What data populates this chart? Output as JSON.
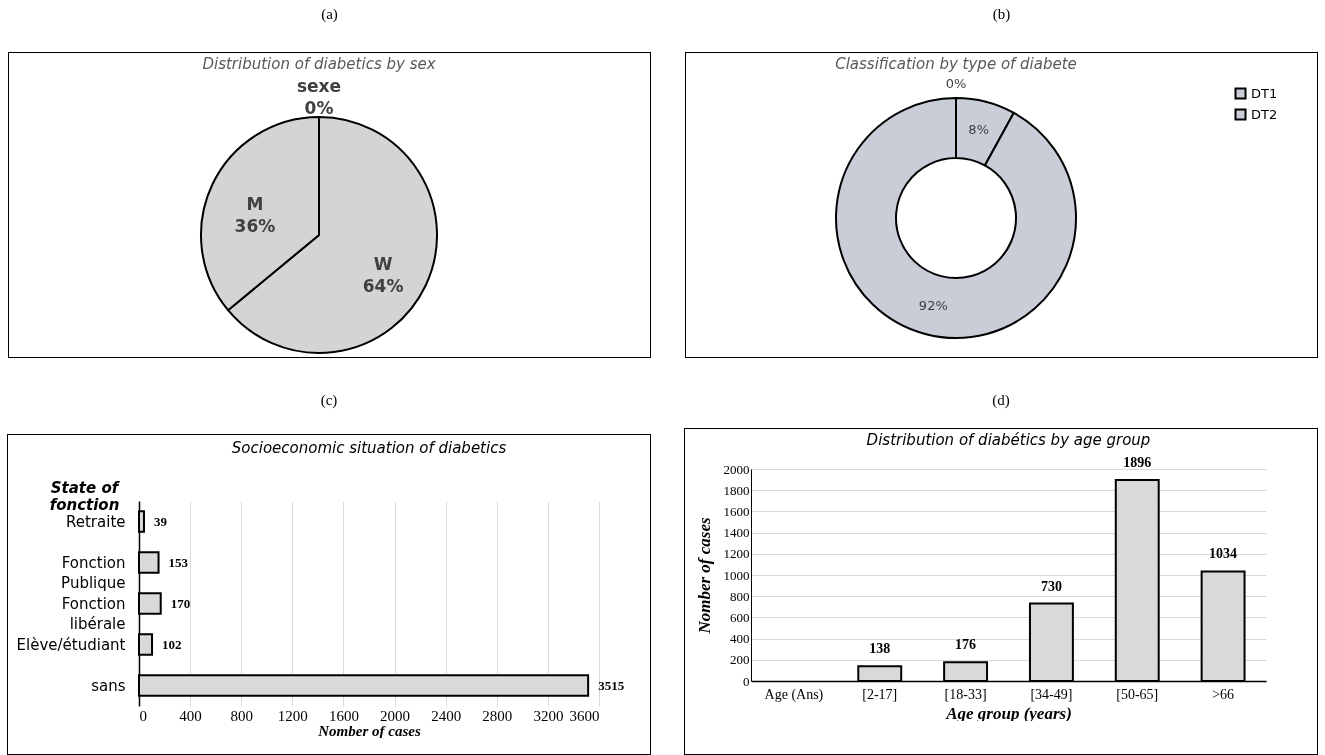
{
  "chart_data": [
    {
      "type": "pie",
      "title": "Distribution of diabetics by sex",
      "annotations": [
        "(a)"
      ],
      "categories": [
        "sexe",
        "W",
        "M"
      ],
      "values": [
        0,
        64,
        36
      ],
      "value_labels": [
        "0%",
        "64%",
        "36%"
      ],
      "colors": [
        "#d4d4d4",
        "#d4d4d4",
        "#d4d4d4"
      ],
      "legend": false
    },
    {
      "type": "donut",
      "title": "Classification by type of diabete",
      "annotations": [
        "(b)"
      ],
      "categories": [
        null,
        "DT1",
        "DT2"
      ],
      "values": [
        0,
        8,
        92
      ],
      "value_labels": [
        "0%",
        "8%",
        "92%"
      ],
      "colors": [
        "#c9cdd8",
        "#c9cdd8",
        "#c9cdd8"
      ],
      "legend": "right"
    },
    {
      "type": "bar",
      "orientation": "horizontal",
      "title": "Socioeconomic situation of  diabetics",
      "annotations": [
        "(c)"
      ],
      "ylabel": "State of fonction",
      "xlabel": "Nomber of cases",
      "categories": [
        "Retraite",
        "Fonction Publique",
        "Fonction libérale",
        "Elève/étudiant",
        "sans"
      ],
      "values": [
        39,
        153,
        170,
        102,
        3515
      ],
      "color": "#d9d9d9",
      "xlim": [
        0,
        3600
      ],
      "xticks": [
        0,
        400,
        800,
        1200,
        1600,
        2000,
        2400,
        2800,
        3200,
        3600
      ],
      "grid": "x",
      "data_labels": true
    },
    {
      "type": "bar",
      "title": "Distribution of diabétics by age group",
      "annotations": [
        "(d)"
      ],
      "xlabel": "Age group (years)",
      "ylabel": "Nomber of cases",
      "categories": [
        "Age (Ans)",
        "[2-17]",
        "[18-33]",
        "[34-49]",
        "[50-65]",
        ">66"
      ],
      "values": [
        null,
        138,
        176,
        730,
        1896,
        1034
      ],
      "color": "#d9d9d9",
      "ylim": [
        0,
        2000
      ],
      "yticks": [
        0,
        200,
        400,
        600,
        800,
        1000,
        1200,
        1400,
        1600,
        1800,
        2000
      ],
      "grid": "y",
      "data_labels": true
    }
  ]
}
